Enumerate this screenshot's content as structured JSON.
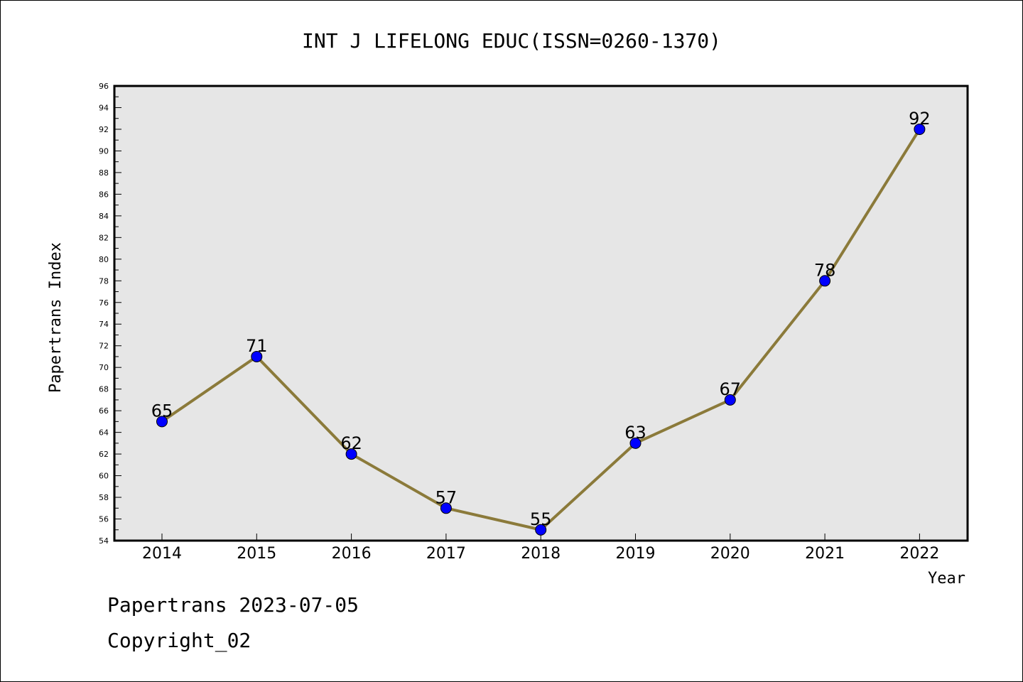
{
  "chart_data": {
    "type": "line",
    "title": "INT J LIFELONG EDUC(ISSN=0260-1370)",
    "xlabel": "Year",
    "ylabel": "Papertrans Index",
    "categories": [
      "2014",
      "2015",
      "2016",
      "2017",
      "2018",
      "2019",
      "2020",
      "2021",
      "2022"
    ],
    "series": [
      {
        "values": [
          65,
          71,
          62,
          57,
          55,
          63,
          67,
          78,
          92
        ]
      }
    ],
    "ylim": [
      54,
      96
    ],
    "yticks": [
      54,
      56,
      58,
      60,
      62,
      64,
      66,
      68,
      70,
      72,
      74,
      76,
      78,
      80,
      82,
      84,
      86,
      88,
      90,
      92,
      94,
      96
    ],
    "grid": false,
    "colors": {
      "line": "#8b7a3a",
      "marker": "#0000ff",
      "plot_bg": "#e6e6e6"
    }
  },
  "footer": {
    "line1": "Papertrans 2023-07-05",
    "line2": "Copyright_02"
  }
}
